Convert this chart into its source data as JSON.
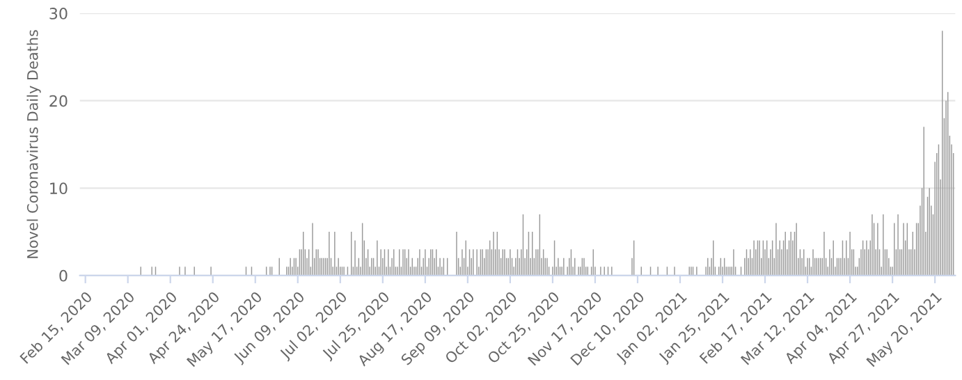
{
  "chart_data": {
    "type": "bar",
    "ylabel": "Novel Coronavirus Daily Deaths",
    "color": "#999999",
    "grid": "y",
    "x": [
      "2020-02-15",
      "2020-02-16",
      "2020-02-17",
      "2020-02-18",
      "2020-02-19",
      "2020-02-20",
      "2020-02-21",
      "2020-02-22",
      "2020-02-23",
      "2020-02-24",
      "2020-02-25",
      "2020-02-26",
      "2020-02-27",
      "2020-02-28",
      "2020-02-29",
      "2020-03-01",
      "2020-03-02",
      "2020-03-03",
      "2020-03-04",
      "2020-03-05",
      "2020-03-06",
      "2020-03-07",
      "2020-03-08",
      "2020-03-09",
      "2020-03-10",
      "2020-03-11",
      "2020-03-12",
      "2020-03-13",
      "2020-03-14",
      "2020-03-15",
      "2020-03-16",
      "2020-03-17",
      "2020-03-18",
      "2020-03-19",
      "2020-03-20",
      "2020-03-21",
      "2020-03-22",
      "2020-03-23",
      "2020-03-24",
      "2020-03-25",
      "2020-03-26",
      "2020-03-27",
      "2020-03-28",
      "2020-03-29",
      "2020-03-30",
      "2020-03-31",
      "2020-04-01",
      "2020-04-02",
      "2020-04-03",
      "2020-04-04",
      "2020-04-05",
      "2020-04-06",
      "2020-04-07",
      "2020-04-08",
      "2020-04-09",
      "2020-04-10",
      "2020-04-11",
      "2020-04-12",
      "2020-04-13",
      "2020-04-14",
      "2020-04-15",
      "2020-04-16",
      "2020-04-17",
      "2020-04-18",
      "2020-04-19",
      "2020-04-20",
      "2020-04-21",
      "2020-04-22",
      "2020-04-23",
      "2020-04-24",
      "2020-04-25",
      "2020-04-26",
      "2020-04-27",
      "2020-04-28",
      "2020-04-29",
      "2020-04-30",
      "2020-05-01",
      "2020-05-02",
      "2020-05-03",
      "2020-05-04",
      "2020-05-05",
      "2020-05-06",
      "2020-05-07",
      "2020-05-08",
      "2020-05-09",
      "2020-05-10",
      "2020-05-11",
      "2020-05-12",
      "2020-05-13",
      "2020-05-14",
      "2020-05-15",
      "2020-05-16",
      "2020-05-17",
      "2020-05-18",
      "2020-05-19",
      "2020-05-20",
      "2020-05-21",
      "2020-05-22",
      "2020-05-23",
      "2020-05-24",
      "2020-05-25",
      "2020-05-26",
      "2020-05-27",
      "2020-05-28",
      "2020-05-29",
      "2020-05-30",
      "2020-05-31",
      "2020-06-01",
      "2020-06-02",
      "2020-06-03",
      "2020-06-04",
      "2020-06-05",
      "2020-06-06",
      "2020-06-07",
      "2020-06-08",
      "2020-06-09",
      "2020-06-10",
      "2020-06-11",
      "2020-06-12",
      "2020-06-13",
      "2020-06-14",
      "2020-06-15",
      "2020-06-16",
      "2020-06-17",
      "2020-06-18",
      "2020-06-19",
      "2020-06-20",
      "2020-06-21",
      "2020-06-22",
      "2020-06-23",
      "2020-06-24",
      "2020-06-25",
      "2020-06-26",
      "2020-06-27",
      "2020-06-28",
      "2020-06-29",
      "2020-06-30",
      "2020-07-01",
      "2020-07-02",
      "2020-07-03",
      "2020-07-04",
      "2020-07-05",
      "2020-07-06",
      "2020-07-07",
      "2020-07-08",
      "2020-07-09",
      "2020-07-10",
      "2020-07-11",
      "2020-07-12",
      "2020-07-13",
      "2020-07-14",
      "2020-07-15",
      "2020-07-16",
      "2020-07-17",
      "2020-07-18",
      "2020-07-19",
      "2020-07-20",
      "2020-07-21",
      "2020-07-22",
      "2020-07-23",
      "2020-07-24",
      "2020-07-25",
      "2020-07-26",
      "2020-07-27",
      "2020-07-28",
      "2020-07-29",
      "2020-07-30",
      "2020-07-31",
      "2020-08-01",
      "2020-08-02",
      "2020-08-03",
      "2020-08-04",
      "2020-08-05",
      "2020-08-06",
      "2020-08-07",
      "2020-08-08",
      "2020-08-09",
      "2020-08-10",
      "2020-08-11",
      "2020-08-12",
      "2020-08-13",
      "2020-08-14",
      "2020-08-15",
      "2020-08-16",
      "2020-08-17",
      "2020-08-18",
      "2020-08-19",
      "2020-08-20",
      "2020-08-21",
      "2020-08-22",
      "2020-08-23",
      "2020-08-24",
      "2020-08-25",
      "2020-08-26",
      "2020-08-27",
      "2020-08-28",
      "2020-08-29",
      "2020-08-30",
      "2020-08-31",
      "2020-09-01",
      "2020-09-02",
      "2020-09-03",
      "2020-09-04",
      "2020-09-05",
      "2020-09-06",
      "2020-09-07",
      "2020-09-08",
      "2020-09-09",
      "2020-09-10",
      "2020-09-11",
      "2020-09-12",
      "2020-09-13",
      "2020-09-14",
      "2020-09-15",
      "2020-09-16",
      "2020-09-17",
      "2020-09-18",
      "2020-09-19",
      "2020-09-20",
      "2020-09-21",
      "2020-09-22",
      "2020-09-23",
      "2020-09-24",
      "2020-09-25",
      "2020-09-26",
      "2020-09-27",
      "2020-09-28",
      "2020-09-29",
      "2020-09-30",
      "2020-10-01",
      "2020-10-02",
      "2020-10-03",
      "2020-10-04",
      "2020-10-05",
      "2020-10-06",
      "2020-10-07",
      "2020-10-08",
      "2020-10-09",
      "2020-10-10",
      "2020-10-11",
      "2020-10-12",
      "2020-10-13",
      "2020-10-14",
      "2020-10-15",
      "2020-10-16",
      "2020-10-17",
      "2020-10-18",
      "2020-10-19",
      "2020-10-20",
      "2020-10-21",
      "2020-10-22",
      "2020-10-23",
      "2020-10-24",
      "2020-10-25",
      "2020-10-26",
      "2020-10-27",
      "2020-10-28",
      "2020-10-29",
      "2020-10-30",
      "2020-10-31",
      "2020-11-01",
      "2020-11-02",
      "2020-11-03",
      "2020-11-04",
      "2020-11-05",
      "2020-11-06",
      "2020-11-07",
      "2020-11-08",
      "2020-11-09",
      "2020-11-10",
      "2020-11-11",
      "2020-11-12",
      "2020-11-13",
      "2020-11-14",
      "2020-11-15",
      "2020-11-16",
      "2020-11-17",
      "2020-11-18",
      "2020-11-19",
      "2020-11-20",
      "2020-11-21",
      "2020-11-22",
      "2020-11-23",
      "2020-11-24",
      "2020-11-25",
      "2020-11-26",
      "2020-11-27",
      "2020-11-28",
      "2020-11-29",
      "2020-11-30",
      "2020-12-01",
      "2020-12-02",
      "2020-12-03",
      "2020-12-04",
      "2020-12-05",
      "2020-12-06",
      "2020-12-07",
      "2020-12-08",
      "2020-12-09",
      "2020-12-10",
      "2020-12-11",
      "2020-12-12",
      "2020-12-13",
      "2020-12-14",
      "2020-12-15",
      "2020-12-16",
      "2020-12-17",
      "2020-12-18",
      "2020-12-19",
      "2020-12-20",
      "2020-12-21",
      "2020-12-22",
      "2020-12-23",
      "2020-12-24",
      "2020-12-25",
      "2020-12-26",
      "2020-12-27",
      "2020-12-28",
      "2020-12-29",
      "2020-12-30",
      "2020-12-31",
      "2021-01-01",
      "2021-01-02",
      "2021-01-03",
      "2021-01-04",
      "2021-01-05",
      "2021-01-06",
      "2021-01-07",
      "2021-01-08",
      "2021-01-09",
      "2021-01-10",
      "2021-01-11",
      "2021-01-12",
      "2021-01-13",
      "2021-01-14",
      "2021-01-15",
      "2021-01-16",
      "2021-01-17",
      "2021-01-18",
      "2021-01-19",
      "2021-01-20",
      "2021-01-21",
      "2021-01-22",
      "2021-01-23",
      "2021-01-24",
      "2021-01-25",
      "2021-01-26",
      "2021-01-27",
      "2021-01-28",
      "2021-01-29",
      "2021-01-30",
      "2021-01-31",
      "2021-02-01",
      "2021-02-02",
      "2021-02-03",
      "2021-02-04",
      "2021-02-05",
      "2021-02-06",
      "2021-02-07",
      "2021-02-08",
      "2021-02-09",
      "2021-02-10",
      "2021-02-11",
      "2021-02-12",
      "2021-02-13",
      "2021-02-14",
      "2021-02-15",
      "2021-02-16",
      "2021-02-17",
      "2021-02-18",
      "2021-02-19",
      "2021-02-20",
      "2021-02-21",
      "2021-02-22",
      "2021-02-23",
      "2021-02-24",
      "2021-02-25",
      "2021-02-26",
      "2021-02-27",
      "2021-02-28",
      "2021-03-01",
      "2021-03-02",
      "2021-03-03",
      "2021-03-04",
      "2021-03-05",
      "2021-03-06",
      "2021-03-07",
      "2021-03-08",
      "2021-03-09",
      "2021-03-10",
      "2021-03-11",
      "2021-03-12",
      "2021-03-13",
      "2021-03-14",
      "2021-03-15",
      "2021-03-16",
      "2021-03-17",
      "2021-03-18",
      "2021-03-19",
      "2021-03-20",
      "2021-03-21",
      "2021-03-22",
      "2021-03-23",
      "2021-03-24",
      "2021-03-25",
      "2021-03-26",
      "2021-03-27",
      "2021-03-28",
      "2021-03-29",
      "2021-03-30",
      "2021-03-31",
      "2021-04-01",
      "2021-04-02",
      "2021-04-03",
      "2021-04-04",
      "2021-04-05",
      "2021-04-06",
      "2021-04-07",
      "2021-04-08",
      "2021-04-09",
      "2021-04-10",
      "2021-04-11",
      "2021-04-12",
      "2021-04-13",
      "2021-04-14",
      "2021-04-15",
      "2021-04-16",
      "2021-04-17",
      "2021-04-18",
      "2021-04-19",
      "2021-04-20",
      "2021-04-21",
      "2021-04-22",
      "2021-04-23",
      "2021-04-24",
      "2021-04-25",
      "2021-04-26",
      "2021-04-27",
      "2021-04-28",
      "2021-04-29",
      "2021-04-30",
      "2021-05-01",
      "2021-05-02",
      "2021-05-03",
      "2021-05-04",
      "2021-05-05",
      "2021-05-06",
      "2021-05-07",
      "2021-05-08",
      "2021-05-09",
      "2021-05-10",
      "2021-05-11",
      "2021-05-12",
      "2021-05-13",
      "2021-05-14",
      "2021-05-15",
      "2021-05-16",
      "2021-05-17",
      "2021-05-18",
      "2021-05-19",
      "2021-05-20",
      "2021-05-21",
      "2021-05-22",
      "2021-05-23",
      "2021-05-24",
      "2021-05-25",
      "2021-05-26",
      "2021-05-27",
      "2021-05-28",
      "2021-05-29",
      "2021-05-30"
    ],
    "values": [
      0,
      0,
      0,
      0,
      0,
      0,
      0,
      0,
      0,
      0,
      0,
      0,
      0,
      0,
      0,
      0,
      0,
      0,
      0,
      0,
      0,
      0,
      0,
      0,
      0,
      0,
      0,
      0,
      0,
      0,
      1,
      0,
      0,
      0,
      0,
      0,
      1,
      0,
      1,
      0,
      0,
      0,
      0,
      0,
      0,
      0,
      0,
      0,
      0,
      0,
      0,
      1,
      0,
      0,
      1,
      0,
      0,
      0,
      0,
      1,
      0,
      0,
      0,
      0,
      0,
      0,
      0,
      0,
      1,
      0,
      0,
      0,
      0,
      0,
      0,
      0,
      0,
      0,
      0,
      0,
      0,
      0,
      0,
      0,
      0,
      0,
      0,
      1,
      0,
      0,
      1,
      0,
      0,
      0,
      0,
      0,
      0,
      0,
      1,
      0,
      1,
      1,
      0,
      0,
      0,
      2,
      0,
      0,
      0,
      1,
      1,
      2,
      1,
      2,
      2,
      1,
      3,
      3,
      5,
      3,
      2,
      3,
      1,
      6,
      2,
      3,
      3,
      2,
      2,
      2,
      2,
      2,
      5,
      2,
      1,
      5,
      1,
      2,
      1,
      1,
      1,
      0,
      1,
      0,
      5,
      1,
      4,
      1,
      2,
      1,
      6,
      4,
      2,
      3,
      1,
      2,
      2,
      1,
      4,
      1,
      3,
      2,
      3,
      1,
      3,
      1,
      2,
      3,
      1,
      1,
      3,
      1,
      3,
      3,
      2,
      3,
      1,
      2,
      1,
      1,
      2,
      3,
      1,
      2,
      3,
      1,
      2,
      3,
      3,
      2,
      3,
      1,
      2,
      1,
      2,
      0,
      2,
      0,
      0,
      0,
      0,
      5,
      2,
      1,
      3,
      2,
      4,
      1,
      3,
      2,
      3,
      0,
      3,
      1,
      3,
      3,
      2,
      3,
      3,
      4,
      3,
      5,
      3,
      5,
      3,
      2,
      3,
      3,
      2,
      2,
      3,
      2,
      1,
      2,
      3,
      2,
      3,
      7,
      2,
      3,
      5,
      2,
      5,
      2,
      3,
      3,
      7,
      2,
      3,
      2,
      2,
      1,
      0,
      1,
      4,
      1,
      2,
      1,
      1,
      2,
      0,
      1,
      2,
      3,
      1,
      2,
      0,
      1,
      1,
      2,
      2,
      1,
      1,
      0,
      1,
      3,
      1,
      0,
      0,
      1,
      0,
      1,
      0,
      1,
      0,
      1,
      0,
      0,
      0,
      0,
      0,
      0,
      0,
      0,
      0,
      0,
      2,
      4,
      0,
      0,
      0,
      1,
      0,
      0,
      0,
      0,
      1,
      0,
      0,
      0,
      1,
      0,
      0,
      0,
      0,
      1,
      0,
      0,
      0,
      1,
      0,
      0,
      0,
      0,
      0,
      0,
      0,
      1,
      1,
      1,
      0,
      1,
      0,
      0,
      0,
      0,
      1,
      2,
      1,
      2,
      4,
      1,
      0,
      1,
      2,
      1,
      2,
      1,
      1,
      1,
      1,
      3,
      1,
      0,
      0,
      1,
      0,
      2,
      3,
      2,
      3,
      2,
      4,
      3,
      4,
      4,
      2,
      4,
      3,
      4,
      2,
      3,
      4,
      2,
      6,
      3,
      4,
      3,
      4,
      5,
      3,
      4,
      5,
      4,
      5,
      6,
      2,
      3,
      2,
      3,
      1,
      2,
      2,
      1,
      3,
      2,
      2,
      2,
      2,
      2,
      5,
      2,
      1,
      3,
      2,
      4,
      1,
      2,
      2,
      2,
      4,
      2,
      4,
      2,
      5,
      3,
      3,
      1,
      1,
      2,
      3,
      4,
      3,
      4,
      3,
      4,
      7,
      6,
      3,
      6,
      3,
      1,
      7,
      3,
      3,
      2,
      1,
      1,
      6,
      3,
      7,
      3,
      3,
      6,
      4,
      6,
      3,
      3,
      5,
      3,
      6,
      6,
      8,
      10,
      17,
      5,
      9,
      10,
      8,
      7,
      13,
      14,
      15,
      11,
      28,
      18,
      20,
      21,
      16,
      15,
      14
    ],
    "xlim": [
      "2020-02-12",
      "2021-05-31"
    ],
    "xticks": [
      {
        "value": "2020-02-15",
        "label": "Feb 15, 2020"
      },
      {
        "value": "2020-03-09",
        "label": "Mar 09, 2020"
      },
      {
        "value": "2020-04-01",
        "label": "Apr 01, 2020"
      },
      {
        "value": "2020-04-24",
        "label": "Apr 24, 2020"
      },
      {
        "value": "2020-05-17",
        "label": "May 17, 2020"
      },
      {
        "value": "2020-06-09",
        "label": "Jun 09, 2020"
      },
      {
        "value": "2020-07-02",
        "label": "Jul 02, 2020"
      },
      {
        "value": "2020-07-25",
        "label": "Jul 25, 2020"
      },
      {
        "value": "2020-08-17",
        "label": "Aug 17, 2020"
      },
      {
        "value": "2020-09-09",
        "label": "Sep 09, 2020"
      },
      {
        "value": "2020-10-02",
        "label": "Oct 02, 2020"
      },
      {
        "value": "2020-10-25",
        "label": "Oct 25, 2020"
      },
      {
        "value": "2020-11-17",
        "label": "Nov 17, 2020"
      },
      {
        "value": "2020-12-10",
        "label": "Dec 10, 2020"
      },
      {
        "value": "2021-01-02",
        "label": "Jan 02, 2021"
      },
      {
        "value": "2021-01-25",
        "label": "Jan 25, 2021"
      },
      {
        "value": "2021-02-17",
        "label": "Feb 17, 2021"
      },
      {
        "value": "2021-03-12",
        "label": "Mar 12, 2021"
      },
      {
        "value": "2021-04-04",
        "label": "Apr 04, 2021"
      },
      {
        "value": "2021-04-27",
        "label": "Apr 27, 2021"
      },
      {
        "value": "2021-05-20",
        "label": "May 20, 2021"
      }
    ],
    "ylim": [
      0,
      30
    ],
    "yticks": [
      0,
      10,
      20,
      30
    ]
  }
}
